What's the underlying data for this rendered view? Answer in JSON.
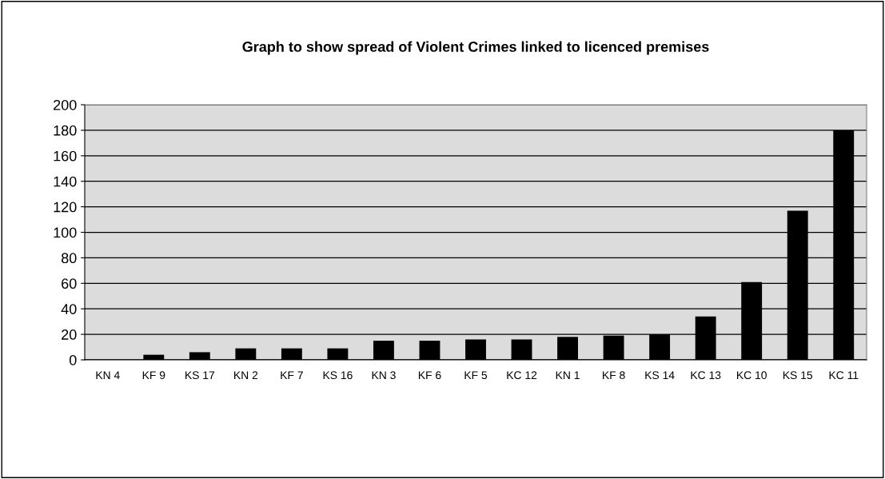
{
  "chart_data": {
    "type": "bar",
    "title": "Graph to show spread of Violent Crimes linked to licenced premises",
    "categories": [
      "KN 4",
      "KF 9",
      "KS 17",
      "KN 2",
      "KF 7",
      "KS 16",
      "KN 3",
      "KF 6",
      "KF 5",
      "KC 12",
      "KN 1",
      "KF 8",
      "KS 14",
      "KC 13",
      "KC 10",
      "KS 15",
      "KC 11"
    ],
    "values": [
      0,
      4,
      6,
      9,
      9,
      9,
      15,
      15,
      16,
      16,
      18,
      19,
      20,
      34,
      61,
      117,
      180
    ],
    "color": "#000000",
    "ylim": [
      0,
      200
    ],
    "yticks": [
      0,
      20,
      40,
      60,
      80,
      100,
      120,
      140,
      160,
      180,
      200
    ],
    "grid": "y",
    "legend": false
  }
}
